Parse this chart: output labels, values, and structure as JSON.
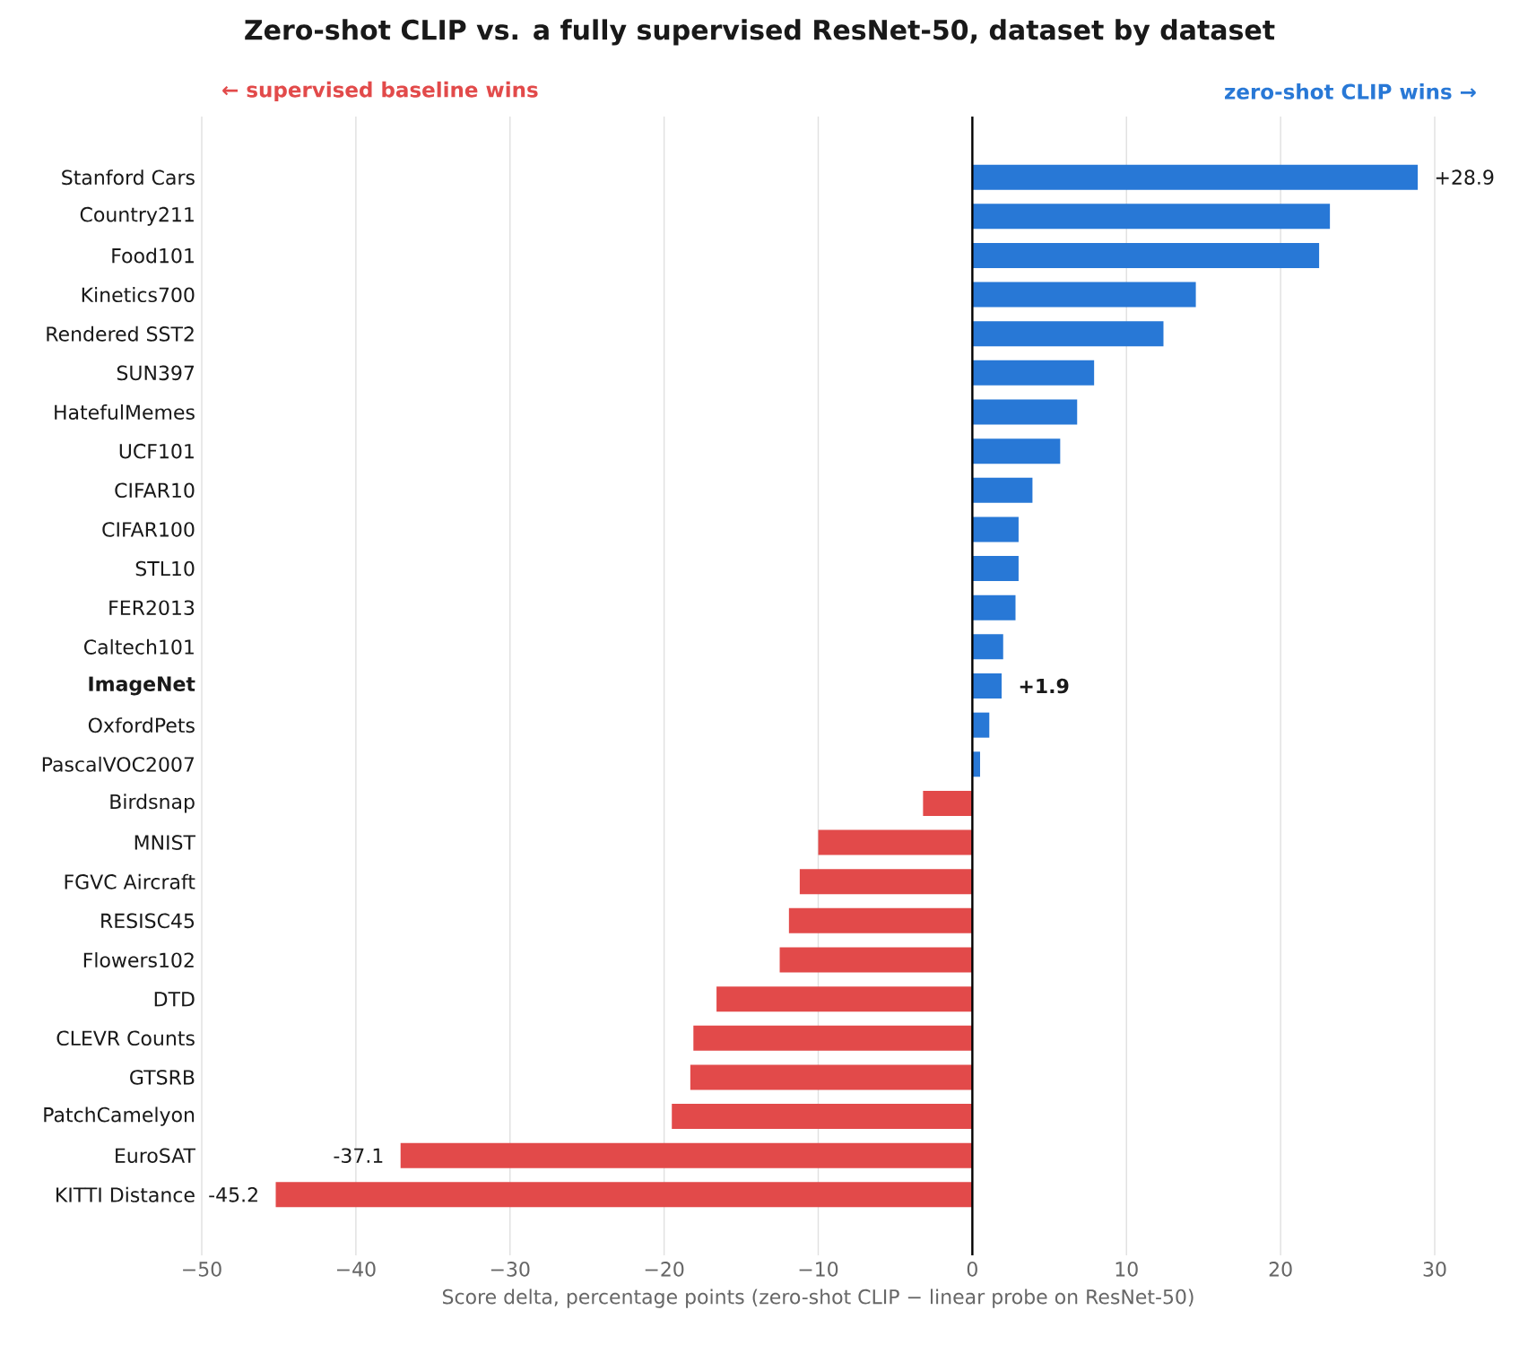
{
  "chart_data": {
    "type": "bar",
    "orientation": "horizontal",
    "title": "Zero-shot CLIP vs. a fully supervised ResNet-50, dataset by dataset",
    "xlabel": "Score delta, percentage points (zero-shot CLIP − linear probe on ResNet-50)",
    "annotations": [
      "← supervised baseline wins",
      "zero-shot CLIP wins →"
    ],
    "categories": [
      "Stanford Cars",
      "Country211",
      "Food101",
      "Kinetics700",
      "Rendered SST2",
      "SUN397",
      "HatefulMemes",
      "UCF101",
      "CIFAR10",
      "CIFAR100",
      "STL10",
      "FER2013",
      "Caltech101",
      "**ImageNet**",
      "OxfordPets",
      "PascalVOC2007",
      "Birdsnap",
      "MNIST",
      "FGVC Aircraft",
      "RESISC45",
      "Flowers102",
      "DTD",
      "CLEVR Counts",
      "GTSRB",
      "PatchCamelyon",
      "EuroSAT",
      "KITTI Distance"
    ],
    "values": [
      28.9,
      23.2,
      22.5,
      14.5,
      12.4,
      7.9,
      6.8,
      5.7,
      3.9,
      3.0,
      3.0,
      2.8,
      2.0,
      1.9,
      1.1,
      0.5,
      -3.2,
      -10.0,
      -11.2,
      -11.9,
      -12.5,
      -16.6,
      -18.1,
      -18.3,
      -19.5,
      -37.1,
      -45.2
    ],
    "colors": [
      "#2878d6",
      "#2878d6",
      "#2878d6",
      "#2878d6",
      "#2878d6",
      "#2878d6",
      "#2878d6",
      "#2878d6",
      "#2878d6",
      "#2878d6",
      "#2878d6",
      "#2878d6",
      "#2878d6",
      "#2878d6",
      "#2878d6",
      "#2878d6",
      "#e24a4a",
      "#e24a4a",
      "#e24a4a",
      "#e24a4a",
      "#e24a4a",
      "#e24a4a",
      "#e24a4a",
      "#e24a4a",
      "#e24a4a",
      "#e24a4a",
      "#e24a4a"
    ],
    "value_labels": [
      "+28.9",
      null,
      null,
      null,
      null,
      null,
      null,
      null,
      null,
      null,
      null,
      null,
      null,
      "**+1.9**",
      null,
      null,
      null,
      null,
      null,
      null,
      null,
      null,
      null,
      null,
      null,
      "-37.1",
      "-45.2"
    ],
    "xlim": [
      -50,
      30
    ],
    "xticks": [
      {
        "value": -50,
        "label": "−50"
      },
      {
        "value": -40,
        "label": "−40"
      },
      {
        "value": -30,
        "label": "−30"
      },
      {
        "value": -20,
        "label": "−20"
      },
      {
        "value": -10,
        "label": "−10"
      },
      0,
      10,
      20,
      30
    ],
    "ref_lines": [
      {
        "axis": "x",
        "value": 0,
        "color": "#000000"
      }
    ],
    "grid": "x"
  }
}
